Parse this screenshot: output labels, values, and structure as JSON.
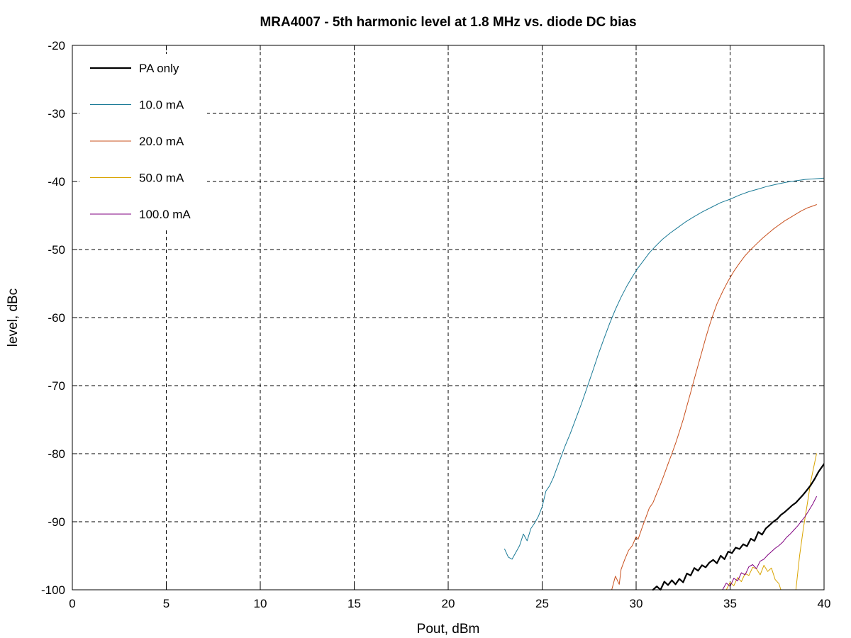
{
  "chart_data": {
    "type": "line",
    "title": "MRA4007 - 5th harmonic level at 1.8 MHz vs. diode DC bias",
    "xlabel": "Pout, dBm",
    "ylabel": "level, dBc",
    "xlim": [
      0,
      40
    ],
    "ylim": [
      -100,
      -20
    ],
    "xticks": [
      0,
      5,
      10,
      15,
      20,
      25,
      30,
      35,
      40
    ],
    "yticks": [
      -20,
      -30,
      -40,
      -50,
      -60,
      -70,
      -80,
      -90,
      -100
    ],
    "grid": true,
    "legend_position": "top-left",
    "series": [
      {
        "name": "PA only",
        "color": "#000000",
        "line_width": 2.2,
        "x": [
          30.9,
          31.1,
          31.3,
          31.5,
          31.7,
          31.9,
          32.1,
          32.3,
          32.5,
          32.7,
          32.9,
          33.1,
          33.3,
          33.5,
          33.7,
          33.9,
          34.1,
          34.3,
          34.5,
          34.7,
          34.9,
          35.1,
          35.3,
          35.5,
          35.7,
          35.9,
          36.1,
          36.3,
          36.5,
          36.7,
          36.9,
          37.1,
          37.3,
          37.5,
          37.7,
          37.9,
          38.1,
          38.3,
          38.5,
          38.7,
          38.9,
          39.1,
          39.3,
          39.5,
          39.7,
          40.0
        ],
        "y": [
          -100,
          -99.5,
          -100,
          -98.8,
          -99.3,
          -98.6,
          -99.2,
          -98.4,
          -98.9,
          -97.6,
          -97.9,
          -96.8,
          -97.2,
          -96.4,
          -96.7,
          -96.0,
          -95.6,
          -96.1,
          -95.0,
          -95.5,
          -94.4,
          -94.6,
          -93.8,
          -94.0,
          -93.3,
          -93.6,
          -92.5,
          -92.8,
          -91.5,
          -91.9,
          -91.0,
          -90.5,
          -90.0,
          -89.6,
          -89.0,
          -88.6,
          -88.1,
          -87.6,
          -87.2,
          -86.6,
          -86.0,
          -85.3,
          -84.6,
          -83.7,
          -82.7,
          -81.5
        ]
      },
      {
        "name": "10.0 mA",
        "color": "#1a7a96",
        "line_width": 1,
        "x": [
          23.0,
          23.2,
          23.4,
          23.6,
          23.8,
          24.0,
          24.2,
          24.4,
          24.6,
          24.8,
          25.0,
          25.2,
          25.4,
          25.6,
          25.8,
          26.0,
          26.2,
          26.5,
          26.8,
          27.1,
          27.4,
          27.7,
          28.0,
          28.3,
          28.6,
          28.9,
          29.2,
          29.5,
          29.8,
          30.1,
          30.4,
          30.7,
          31.0,
          31.4,
          31.8,
          32.2,
          32.6,
          33.0,
          33.5,
          34.0,
          34.5,
          35.0,
          35.5,
          36.0,
          36.5,
          37.0,
          37.5,
          38.0,
          38.5,
          39.0,
          39.5,
          40.0
        ],
        "y": [
          -94.0,
          -95.2,
          -95.5,
          -94.5,
          -93.5,
          -91.8,
          -92.8,
          -91.0,
          -90.2,
          -89.2,
          -87.8,
          -85.5,
          -84.7,
          -83.5,
          -82.0,
          -80.5,
          -79.0,
          -77.0,
          -74.8,
          -72.6,
          -70.2,
          -67.8,
          -65.3,
          -63.0,
          -60.8,
          -58.8,
          -57.0,
          -55.4,
          -54.0,
          -52.7,
          -51.6,
          -50.5,
          -49.6,
          -48.5,
          -47.6,
          -46.8,
          -46.0,
          -45.3,
          -44.5,
          -43.8,
          -43.1,
          -42.6,
          -42.0,
          -41.5,
          -41.1,
          -40.7,
          -40.4,
          -40.1,
          -39.9,
          -39.7,
          -39.6,
          -39.5
        ]
      },
      {
        "name": "20.0 mA",
        "color": "#c8501e",
        "line_width": 1,
        "x": [
          28.7,
          28.9,
          29.1,
          29.2,
          29.4,
          29.6,
          29.8,
          30.0,
          30.1,
          30.3,
          30.5,
          30.7,
          30.9,
          31.1,
          31.3,
          31.5,
          31.7,
          31.9,
          32.1,
          32.3,
          32.5,
          32.7,
          32.9,
          33.1,
          33.3,
          33.5,
          33.7,
          33.9,
          34.1,
          34.3,
          34.6,
          34.9,
          35.2,
          35.5,
          35.8,
          36.1,
          36.4,
          36.7,
          37.0,
          37.3,
          37.6,
          37.9,
          38.2,
          38.5,
          38.8,
          39.1,
          39.4,
          39.6
        ],
        "y": [
          -100,
          -98.0,
          -99.2,
          -97.0,
          -95.5,
          -94.2,
          -93.5,
          -92.2,
          -92.6,
          -91.0,
          -89.5,
          -88.0,
          -87.2,
          -85.8,
          -84.5,
          -83.0,
          -81.5,
          -80.0,
          -78.5,
          -76.8,
          -75.0,
          -73.0,
          -71.0,
          -69.0,
          -67.0,
          -65.0,
          -63.0,
          -61.2,
          -59.5,
          -58.0,
          -56.2,
          -54.6,
          -53.2,
          -52.0,
          -50.9,
          -50.0,
          -49.2,
          -48.4,
          -47.7,
          -47.0,
          -46.4,
          -45.8,
          -45.3,
          -44.8,
          -44.3,
          -43.9,
          -43.6,
          -43.4
        ]
      },
      {
        "name": "50.0 mA",
        "color": "#d9a400",
        "line_width": 1,
        "x": [
          34.8,
          35.0,
          35.2,
          35.4,
          35.6,
          35.8,
          36.0,
          36.2,
          36.4,
          36.6,
          36.8,
          37.0,
          37.2,
          37.4,
          37.6,
          37.7
        ],
        "y": [
          -100,
          -98.9,
          -99.4,
          -98.2,
          -98.8,
          -97.6,
          -97.9,
          -96.7,
          -96.9,
          -97.8,
          -96.4,
          -97.3,
          -96.8,
          -98.5,
          -99.1,
          -100
        ],
        "x2": [
          38.5,
          38.7,
          38.9,
          39.1,
          39.3,
          39.6
        ],
        "y2": [
          -100,
          -95.0,
          -91.0,
          -87.5,
          -84.0,
          -80.0
        ]
      },
      {
        "name": "100.0 mA",
        "color": "#800080",
        "line_width": 1,
        "x": [
          34.6,
          34.8,
          35.0,
          35.2,
          35.4,
          35.6,
          35.8,
          36.0,
          36.2,
          36.4,
          36.6,
          36.8,
          37.0,
          37.2,
          37.4,
          37.6,
          37.8,
          38.0,
          38.2,
          38.4,
          38.6,
          38.8,
          39.0,
          39.2,
          39.4,
          39.6
        ],
        "y": [
          -100,
          -99.0,
          -99.5,
          -98.3,
          -98.7,
          -97.5,
          -97.8,
          -96.6,
          -96.3,
          -96.9,
          -95.8,
          -95.5,
          -94.9,
          -94.4,
          -93.9,
          -93.5,
          -93.0,
          -92.3,
          -91.8,
          -91.2,
          -90.6,
          -89.9,
          -89.2,
          -88.3,
          -87.4,
          -86.3
        ]
      }
    ]
  }
}
